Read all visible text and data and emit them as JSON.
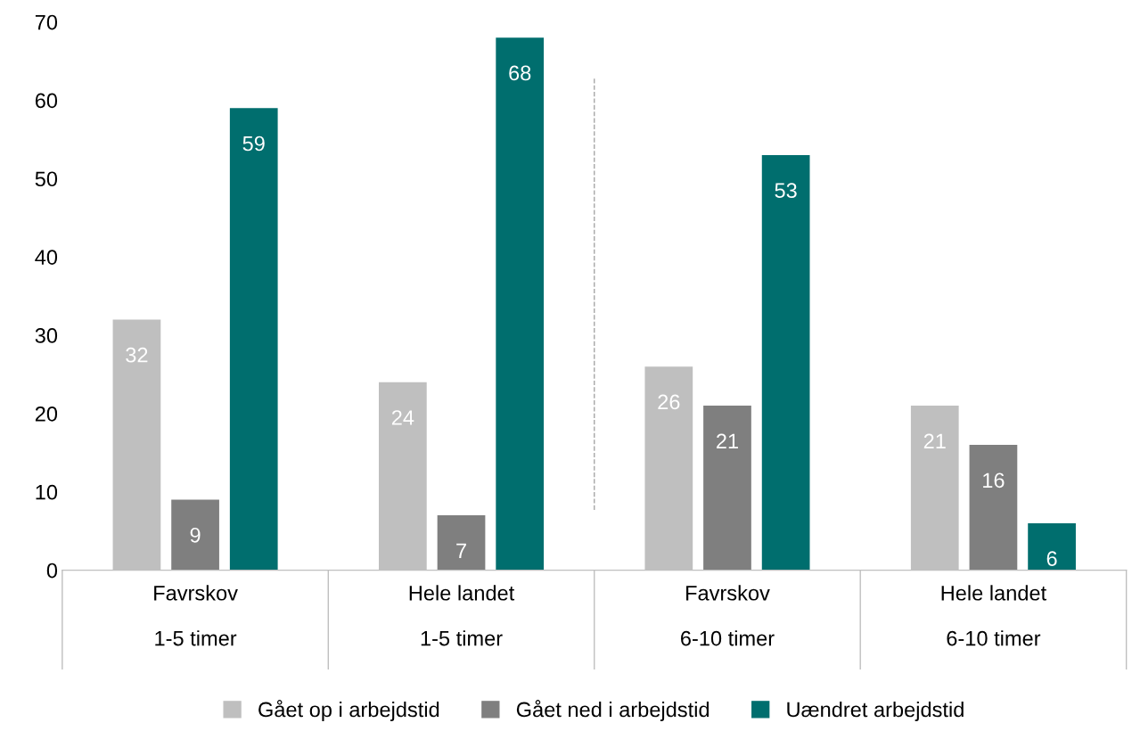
{
  "chart_data": {
    "type": "bar",
    "categories": [
      "Favrskov\n\n1-5 timer",
      "Hele landet\n\n1-5 timer",
      "Favrskov\n\n6-10 timer",
      "Hele landet\n\n6-10 timer"
    ],
    "series": [
      {
        "name": "Gået op i arbejdstid",
        "color": "#bfbfbf",
        "values": [
          32,
          24,
          26,
          21
        ]
      },
      {
        "name": "Gået ned i arbejdstid",
        "color": "#7f7f7f",
        "values": [
          9,
          7,
          21,
          16
        ]
      },
      {
        "name": "Uændret arbejdstid",
        "color": "#006e6e",
        "values": [
          59,
          68,
          53,
          6
        ]
      }
    ],
    "ylim": [
      0,
      70
    ],
    "yticks": [
      0,
      10,
      20,
      30,
      40,
      50,
      60,
      70
    ],
    "data_labels": true,
    "grid": false,
    "legend": "bottom"
  }
}
